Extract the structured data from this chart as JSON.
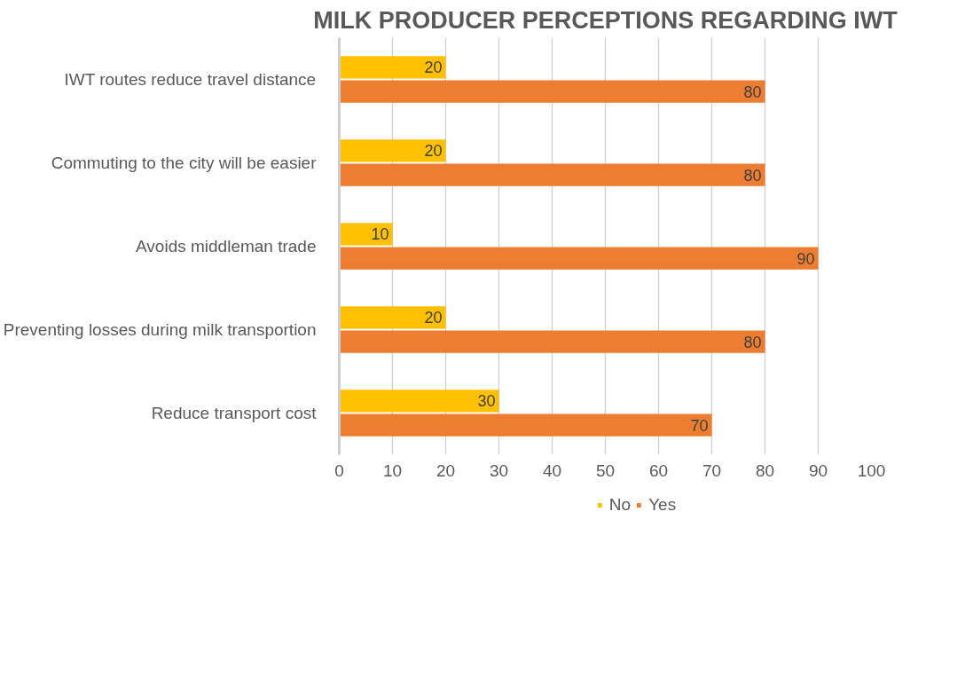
{
  "chart_data": {
    "type": "bar",
    "orientation": "horizontal",
    "title": "MILK PRODUCER PERCEPTIONS REGARDING IWT",
    "categories": [
      "IWT routes reduce travel distance",
      "Commuting to the city will be easier",
      "Avoids middleman trade",
      "Preventing losses during milk transportion",
      "Reduce transport cost"
    ],
    "series": [
      {
        "name": "No",
        "color": "#ffc000",
        "values": [
          20,
          20,
          10,
          20,
          30
        ]
      },
      {
        "name": "Yes",
        "color": "#ed7d31",
        "values": [
          80,
          80,
          90,
          80,
          70
        ]
      }
    ],
    "xlim": [
      0,
      100
    ],
    "xticks": [
      0,
      10,
      20,
      30,
      40,
      50,
      60,
      70,
      80,
      90,
      100
    ],
    "grid": "x",
    "legend": "bottom",
    "data_labels": true
  }
}
